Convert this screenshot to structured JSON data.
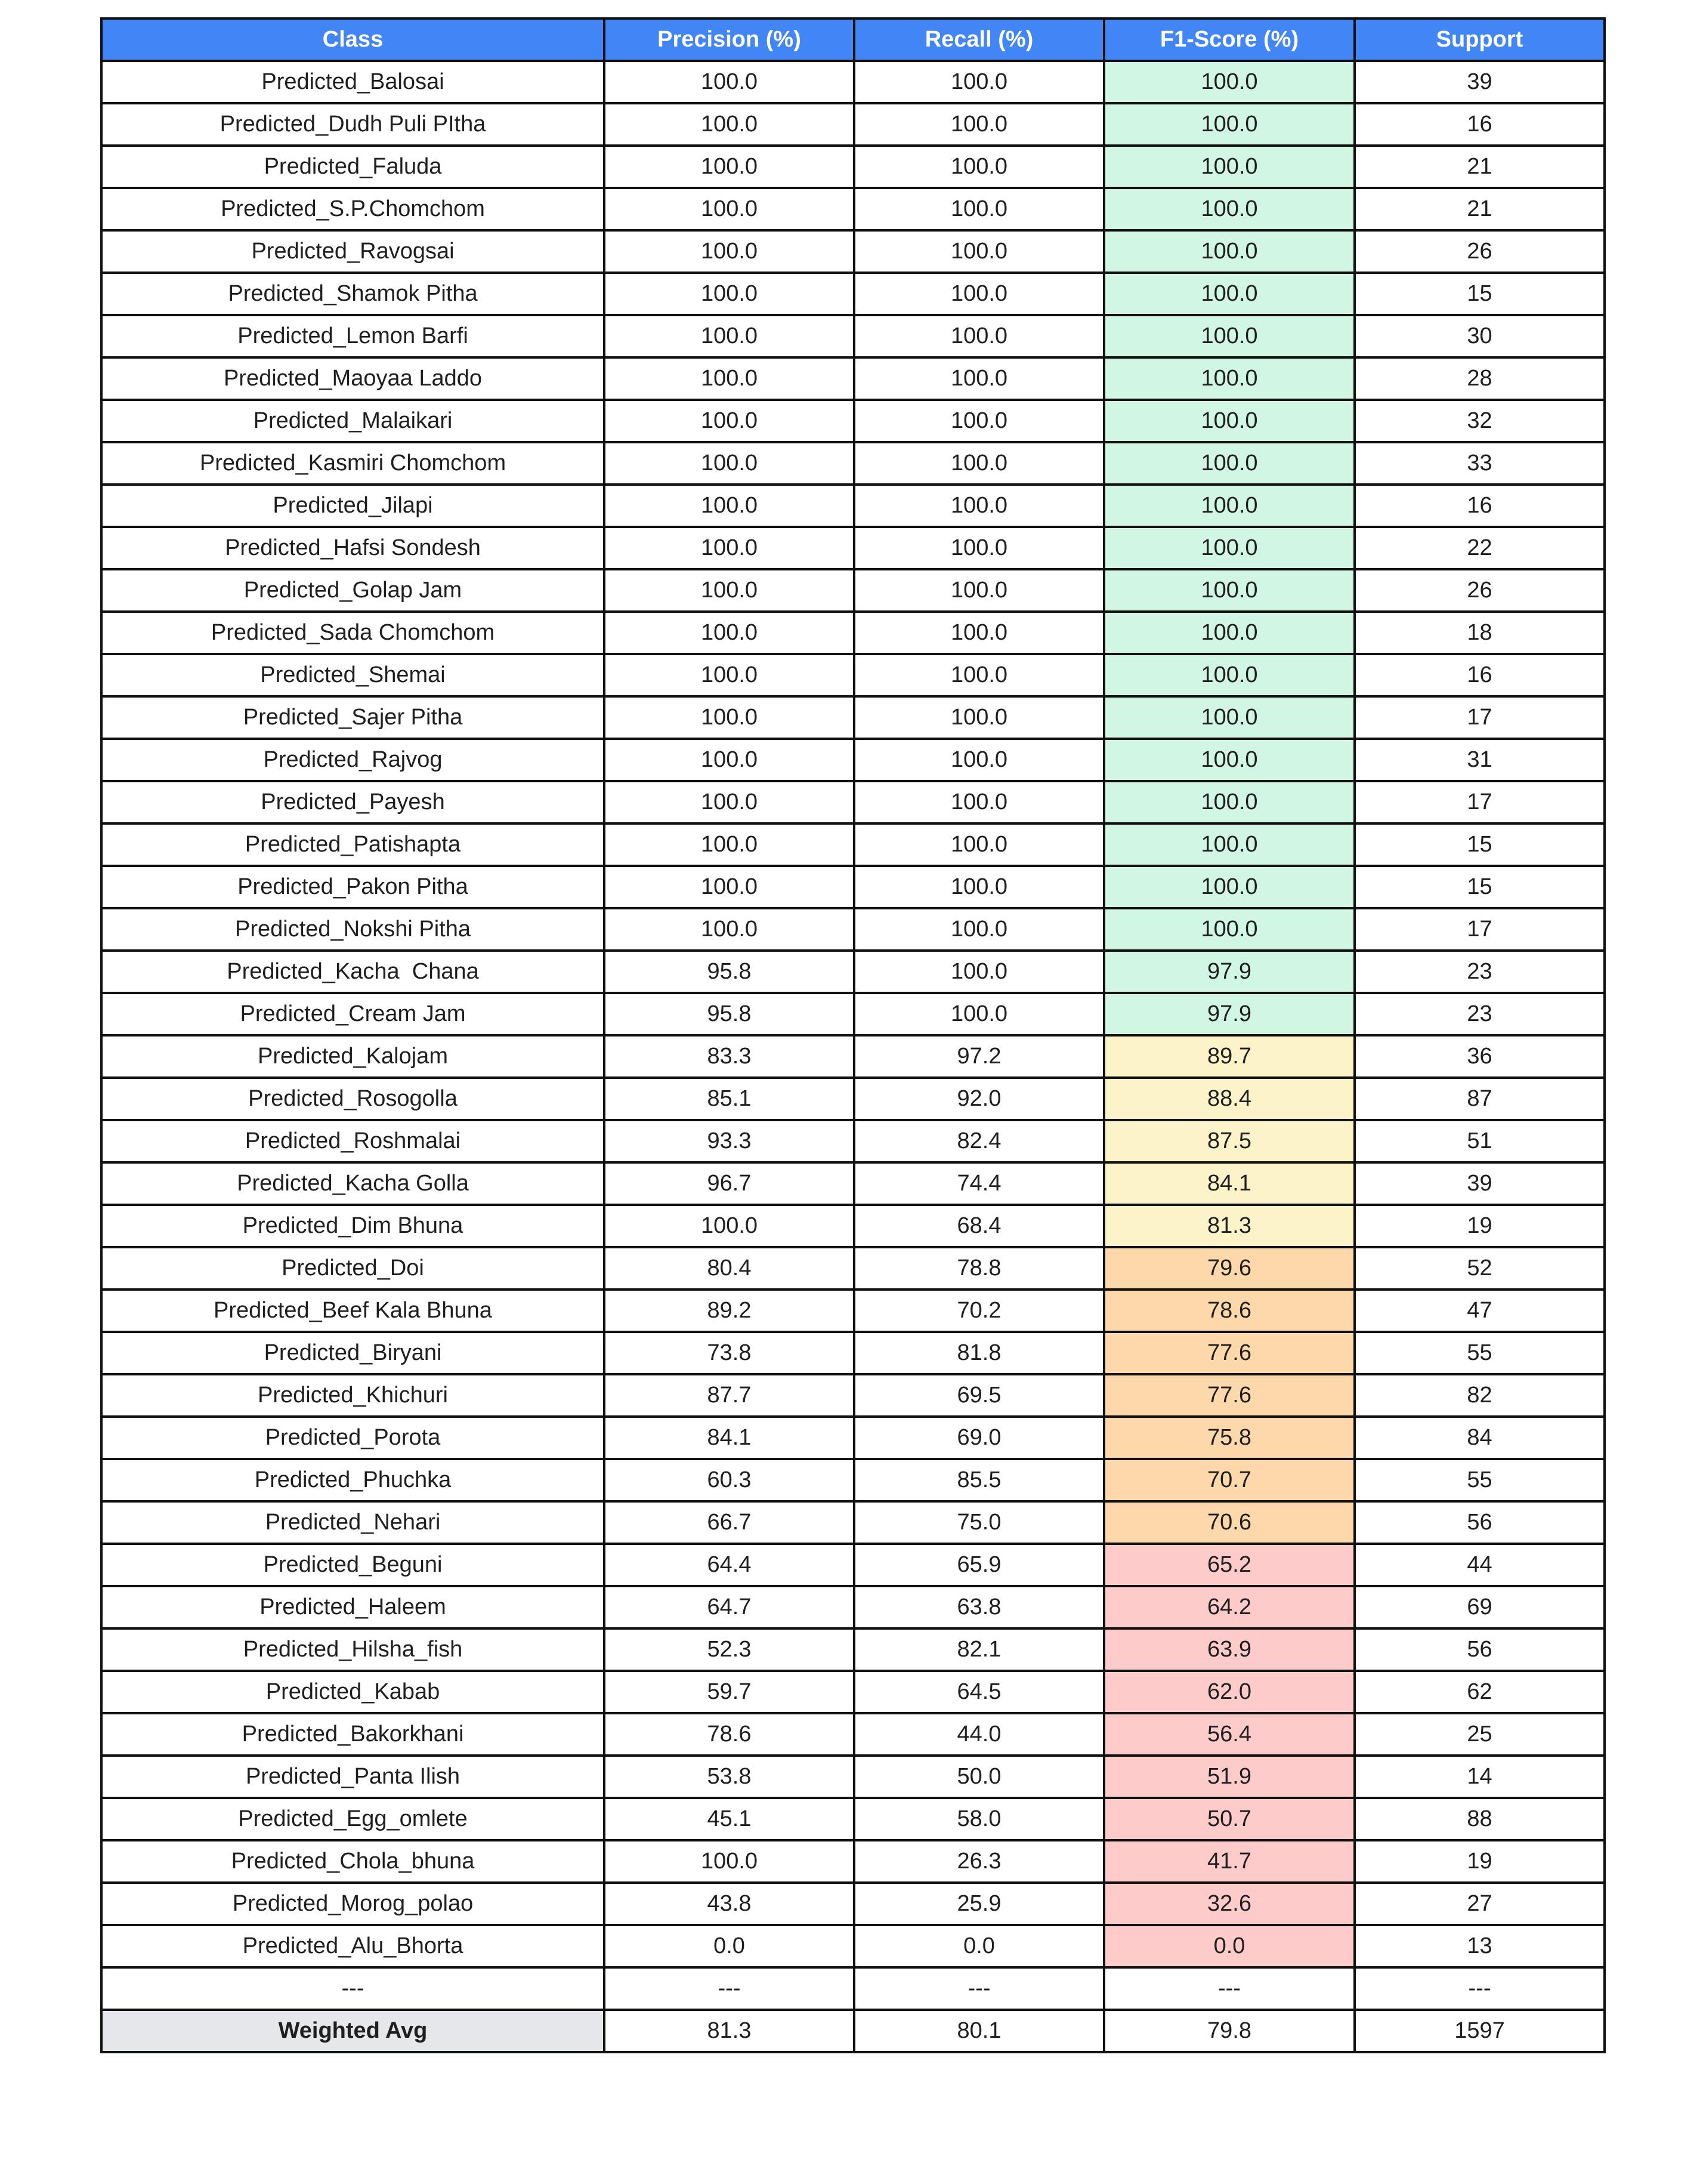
{
  "table": {
    "headers": [
      "Class",
      "Precision (%)",
      "Recall (%)",
      "F1-Score (%)",
      "Support"
    ],
    "colors": {
      "header_bg": "#4285f4",
      "f1_high": "#d1f7e4",
      "f1_mid": "#fdf3c9",
      "f1_low": "#fdd8ab",
      "f1_poor": "#fecbcb",
      "summary_label_bg": "#e6e7ea"
    },
    "rows": [
      [
        "Predicted_Balosai",
        "100.0",
        "100.0",
        "100.0",
        "39"
      ],
      [
        "Predicted_Dudh Puli PItha",
        "100.0",
        "100.0",
        "100.0",
        "16"
      ],
      [
        "Predicted_Faluda",
        "100.0",
        "100.0",
        "100.0",
        "21"
      ],
      [
        "Predicted_S.P.Chomchom",
        "100.0",
        "100.0",
        "100.0",
        "21"
      ],
      [
        "Predicted_Ravogsai",
        "100.0",
        "100.0",
        "100.0",
        "26"
      ],
      [
        "Predicted_Shamok Pitha",
        "100.0",
        "100.0",
        "100.0",
        "15"
      ],
      [
        "Predicted_Lemon Barfi",
        "100.0",
        "100.0",
        "100.0",
        "30"
      ],
      [
        "Predicted_Maoyaa Laddo",
        "100.0",
        "100.0",
        "100.0",
        "28"
      ],
      [
        "Predicted_Malaikari",
        "100.0",
        "100.0",
        "100.0",
        "32"
      ],
      [
        "Predicted_Kasmiri Chomchom",
        "100.0",
        "100.0",
        "100.0",
        "33"
      ],
      [
        "Predicted_Jilapi",
        "100.0",
        "100.0",
        "100.0",
        "16"
      ],
      [
        "Predicted_Hafsi Sondesh",
        "100.0",
        "100.0",
        "100.0",
        "22"
      ],
      [
        "Predicted_Golap Jam",
        "100.0",
        "100.0",
        "100.0",
        "26"
      ],
      [
        "Predicted_Sada Chomchom",
        "100.0",
        "100.0",
        "100.0",
        "18"
      ],
      [
        "Predicted_Shemai",
        "100.0",
        "100.0",
        "100.0",
        "16"
      ],
      [
        "Predicted_Sajer Pitha",
        "100.0",
        "100.0",
        "100.0",
        "17"
      ],
      [
        "Predicted_Rajvog",
        "100.0",
        "100.0",
        "100.0",
        "31"
      ],
      [
        "Predicted_Payesh",
        "100.0",
        "100.0",
        "100.0",
        "17"
      ],
      [
        "Predicted_Patishapta",
        "100.0",
        "100.0",
        "100.0",
        "15"
      ],
      [
        "Predicted_Pakon Pitha",
        "100.0",
        "100.0",
        "100.0",
        "15"
      ],
      [
        "Predicted_Nokshi Pitha",
        "100.0",
        "100.0",
        "100.0",
        "17"
      ],
      [
        "Predicted_Kacha  Chana",
        "95.8",
        "100.0",
        "97.9",
        "23"
      ],
      [
        "Predicted_Cream Jam",
        "95.8",
        "100.0",
        "97.9",
        "23"
      ],
      [
        "Predicted_Kalojam",
        "83.3",
        "97.2",
        "89.7",
        "36"
      ],
      [
        "Predicted_Rosogolla",
        "85.1",
        "92.0",
        "88.4",
        "87"
      ],
      [
        "Predicted_Roshmalai",
        "93.3",
        "82.4",
        "87.5",
        "51"
      ],
      [
        "Predicted_Kacha Golla",
        "96.7",
        "74.4",
        "84.1",
        "39"
      ],
      [
        "Predicted_Dim Bhuna",
        "100.0",
        "68.4",
        "81.3",
        "19"
      ],
      [
        "Predicted_Doi",
        "80.4",
        "78.8",
        "79.6",
        "52"
      ],
      [
        "Predicted_Beef Kala Bhuna",
        "89.2",
        "70.2",
        "78.6",
        "47"
      ],
      [
        "Predicted_Biryani",
        "73.8",
        "81.8",
        "77.6",
        "55"
      ],
      [
        "Predicted_Khichuri",
        "87.7",
        "69.5",
        "77.6",
        "82"
      ],
      [
        "Predicted_Porota",
        "84.1",
        "69.0",
        "75.8",
        "84"
      ],
      [
        "Predicted_Phuchka",
        "60.3",
        "85.5",
        "70.7",
        "55"
      ],
      [
        "Predicted_Nehari",
        "66.7",
        "75.0",
        "70.6",
        "56"
      ],
      [
        "Predicted_Beguni",
        "64.4",
        "65.9",
        "65.2",
        "44"
      ],
      [
        "Predicted_Haleem",
        "64.7",
        "63.8",
        "64.2",
        "69"
      ],
      [
        "Predicted_Hilsha_fish",
        "52.3",
        "82.1",
        "63.9",
        "56"
      ],
      [
        "Predicted_Kabab",
        "59.7",
        "64.5",
        "62.0",
        "62"
      ],
      [
        "Predicted_Bakorkhani",
        "78.6",
        "44.0",
        "56.4",
        "25"
      ],
      [
        "Predicted_Panta Ilish",
        "53.8",
        "50.0",
        "51.9",
        "14"
      ],
      [
        "Predicted_Egg_omlete",
        "45.1",
        "58.0",
        "50.7",
        "88"
      ],
      [
        "Predicted_Chola_bhuna",
        "100.0",
        "26.3",
        "41.7",
        "19"
      ],
      [
        "Predicted_Morog_polao",
        "43.8",
        "25.9",
        "32.6",
        "27"
      ],
      [
        "Predicted_Alu_Bhorta",
        "0.0",
        "0.0",
        "0.0",
        "13"
      ]
    ],
    "separator": [
      "---",
      "---",
      "---",
      "---",
      "---"
    ],
    "summary": [
      "Weighted Avg",
      "81.3",
      "80.1",
      "79.8",
      "1597"
    ]
  }
}
